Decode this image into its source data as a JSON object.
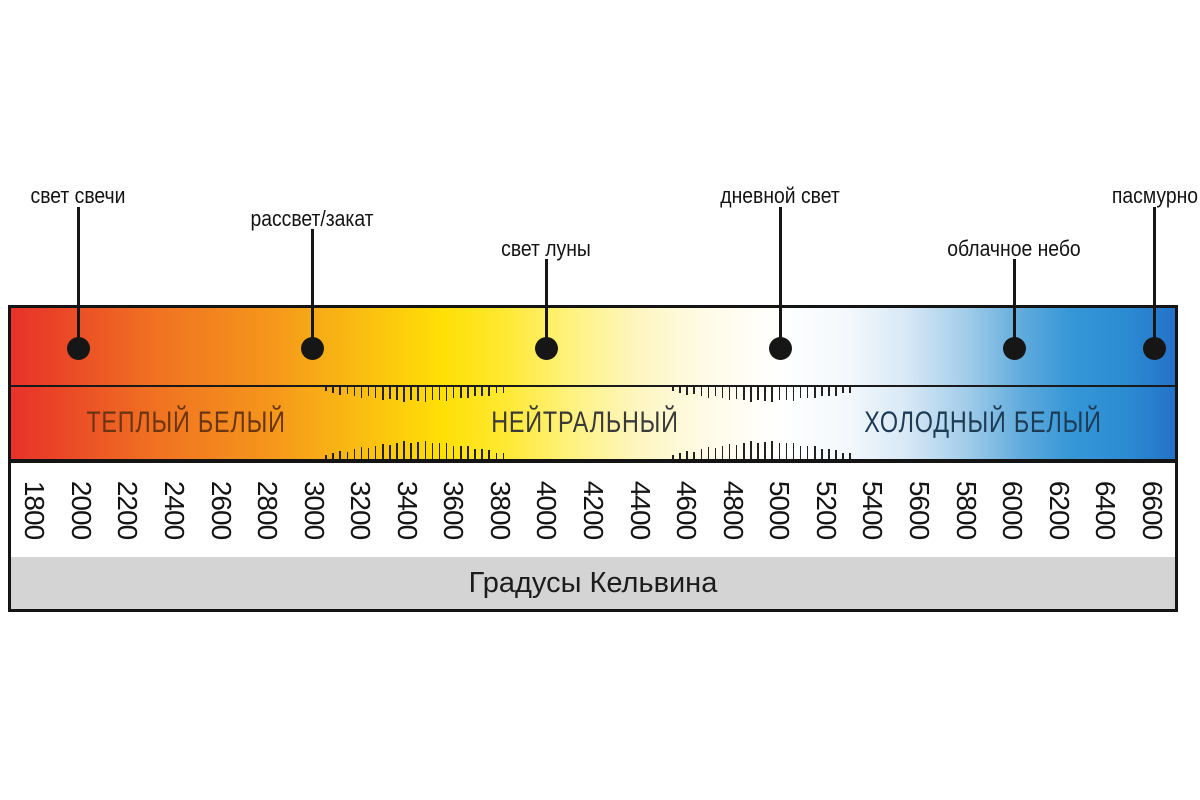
{
  "canvas": {
    "bg": "#ffffff"
  },
  "colors": {
    "border": "#141414",
    "divider": "#1a1a1a",
    "dot": "#161616",
    "tick": "#222222",
    "gray_bar": "#d4d4d4",
    "number_text": "#141414",
    "axis_title_text": "#1c1c1c"
  },
  "chart_data": {
    "type": "scale",
    "axis": {
      "label": "Градусы Кельвина",
      "min": 1800,
      "max": 6600,
      "step": 200
    },
    "tick_labels": [
      "1800",
      "2000",
      "2200",
      "2400",
      "2600",
      "2800",
      "3000",
      "3200",
      "3400",
      "3600",
      "3800",
      "4000",
      "4200",
      "4400",
      "4600",
      "4800",
      "5000",
      "5200",
      "5400",
      "5600",
      "5800",
      "6000",
      "6200",
      "6400",
      "6600"
    ],
    "zones": [
      {
        "id": "warm",
        "label": "ТЕПЛЫЙ БЕЛЫЙ",
        "text_color": "#6b3512",
        "center_pct": 15.0,
        "range_k": [
          1800,
          3000
        ]
      },
      {
        "id": "neutral",
        "label": "НЕЙТРАЛЬНЫЙ",
        "text_color": "#3a3a3a",
        "center_pct": 49.3,
        "range_k": [
          3900,
          4500
        ]
      },
      {
        "id": "cold",
        "label": "ХОЛОДНЫЙ БЕЛЫЙ",
        "text_color": "#1d3b55",
        "center_pct": 83.5,
        "range_k": [
          5400,
          6600
        ]
      }
    ],
    "transitions": [
      {
        "from_k": 3050,
        "to_k": 3850
      },
      {
        "from_k": 4540,
        "to_k": 5340
      }
    ],
    "callouts": [
      {
        "label": "свет свечи",
        "kelvin": 2000,
        "level": 1
      },
      {
        "label": "рассвет/закат",
        "kelvin": 3000,
        "level": 2
      },
      {
        "label": "свет луны",
        "kelvin": 4000,
        "level": 3
      },
      {
        "label": "дневной свет",
        "kelvin": 5000,
        "level": 1
      },
      {
        "label": "облачное небо",
        "kelvin": 6000,
        "level": 3
      },
      {
        "label": "пасмурно",
        "kelvin": 6600,
        "level": 1
      }
    ],
    "gradient_stops": [
      [
        0,
        "#e7322b"
      ],
      [
        4,
        "#ea4527"
      ],
      [
        12,
        "#f07022"
      ],
      [
        22,
        "#f5951b"
      ],
      [
        30,
        "#fabd12"
      ],
      [
        37,
        "#ffdf05"
      ],
      [
        42,
        "#ffe82e"
      ],
      [
        48,
        "#fff27e"
      ],
      [
        54,
        "#fdf6c2"
      ],
      [
        60,
        "#fffbe8"
      ],
      [
        66,
        "#ffffff"
      ],
      [
        72,
        "#f3f8fc"
      ],
      [
        77,
        "#d7e8f5"
      ],
      [
        82,
        "#a3cdea"
      ],
      [
        87,
        "#5eaadc"
      ],
      [
        91,
        "#3697d7"
      ],
      [
        96,
        "#2b8bd2"
      ],
      [
        100,
        "#2472c8"
      ]
    ]
  }
}
